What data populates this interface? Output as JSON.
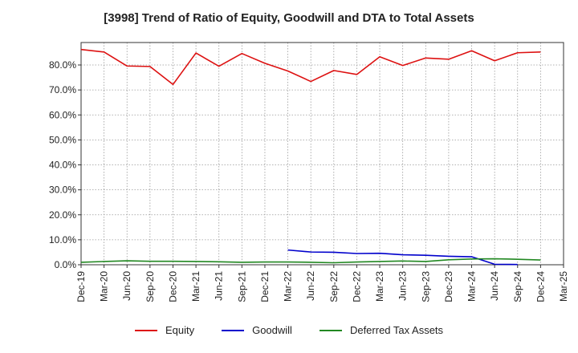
{
  "chart_data": {
    "type": "line",
    "title": "[3998]  Trend of Ratio of Equity, Goodwill and DTA to Total Assets",
    "xlabel": "",
    "ylabel": "",
    "x": [
      "Dec-19",
      "Mar-20",
      "Jun-20",
      "Sep-20",
      "Dec-20",
      "Mar-21",
      "Jun-21",
      "Sep-21",
      "Dec-21",
      "Mar-22",
      "Jun-22",
      "Sep-22",
      "Dec-22",
      "Mar-23",
      "Jun-23",
      "Sep-23",
      "Dec-23",
      "Mar-24",
      "Jun-24",
      "Sep-24",
      "Dec-24",
      "Mar-25"
    ],
    "y_ticks": [
      "0.0%",
      "10.0%",
      "20.0%",
      "30.0%",
      "40.0%",
      "50.0%",
      "60.0%",
      "70.0%",
      "80.0%"
    ],
    "ylim": [
      0,
      89
    ],
    "grid": true,
    "legend_position": "bottom",
    "series": [
      {
        "name": "Equity",
        "color": "#dd1111",
        "values": [
          86.2,
          85.2,
          79.6,
          79.4,
          72.2,
          84.8,
          79.5,
          84.6,
          80.7,
          77.6,
          73.4,
          77.8,
          76.2,
          83.3,
          79.8,
          82.8,
          82.3,
          85.7,
          81.7,
          84.9,
          85.2,
          null
        ]
      },
      {
        "name": "Goodwill",
        "color": "#0000cc",
        "values": [
          null,
          null,
          null,
          null,
          null,
          null,
          null,
          null,
          null,
          5.9,
          5.1,
          5.0,
          4.5,
          4.6,
          4.0,
          3.8,
          3.4,
          3.2,
          0.2,
          0.1,
          null,
          null
        ]
      },
      {
        "name": "Deferred Tax Assets",
        "color": "#228822",
        "values": [
          1.0,
          1.3,
          1.6,
          1.4,
          1.4,
          1.3,
          1.2,
          1.0,
          1.1,
          1.1,
          1.0,
          0.8,
          1.1,
          1.3,
          1.5,
          1.3,
          2.0,
          2.3,
          2.4,
          2.2,
          1.9,
          null
        ]
      }
    ]
  }
}
